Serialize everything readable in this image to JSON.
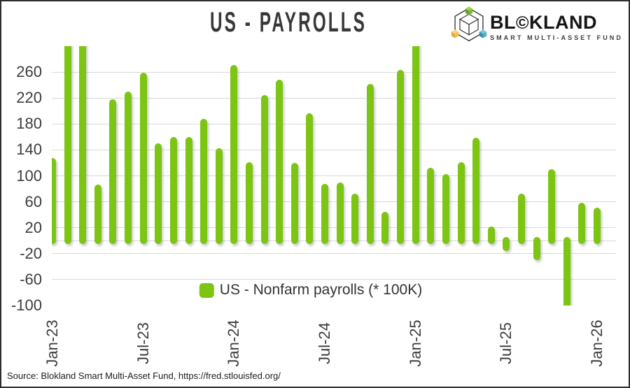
{
  "title": "US - PAYROLLS",
  "logo": {
    "text_pre": "BL",
    "o_glyph": "©",
    "text_post": "KLAND",
    "subtitle": "SMART MULTI-ASSET FUND"
  },
  "legend": {
    "label": "US - Nonfarm payrolls (* 100K)"
  },
  "source_note": "Source: Blokland Smart Multi-Asset Fund, https://fred.stlouisfed.org/",
  "chart_data": {
    "type": "bar",
    "title": "US - PAYROLLS",
    "legend": [
      "US - Nonfarm payrolls (* 100K)"
    ],
    "legend_position": "bottom-center",
    "grid": true,
    "zero_line": true,
    "ylim": [
      -100,
      300
    ],
    "y_ticks": [
      260,
      220,
      180,
      140,
      100,
      60,
      20,
      -20,
      -60,
      -100
    ],
    "x_shown_ticks": [
      "Jan-23",
      "Jul-23",
      "Jan-24",
      "Jul-24",
      "Jan-25",
      "Jul-25",
      "Jan-26"
    ],
    "categories": [
      "Jan-23",
      "Feb-23",
      "Mar-23",
      "Apr-23",
      "May-23",
      "Jun-23",
      "Jul-23",
      "Aug-23",
      "Sep-23",
      "Oct-23",
      "Nov-23",
      "Dec-23",
      "Jan-24",
      "Feb-24",
      "Mar-24",
      "Apr-24",
      "May-24",
      "Jun-24",
      "Jul-24",
      "Aug-24",
      "Sep-24",
      "Oct-24",
      "Nov-24",
      "Dec-24",
      "Jan-25",
      "Feb-25",
      "Mar-25",
      "Apr-25",
      "May-25",
      "Jun-25",
      "Jul-25",
      "Aug-25",
      "Sep-25",
      "Oct-25",
      "Nov-25",
      "Dec-25",
      "Jan-26"
    ],
    "values": [
      128,
      310,
      310,
      87,
      218,
      230,
      259,
      150,
      160,
      160,
      188,
      143,
      271,
      121,
      224,
      248,
      120,
      196,
      88,
      90,
      72,
      242,
      45,
      263,
      310,
      112,
      103,
      121,
      159,
      22,
      -16,
      72,
      -30,
      110,
      -110,
      58,
      51
    ],
    "clipped": {
      "top_overflow": [
        "Feb-23",
        "Mar-23",
        "Jan-25"
      ],
      "bottom_overflow": [
        "Nov-25"
      ]
    },
    "colors": {
      "bar": "#7dc513",
      "grid": "#d9d9d9",
      "text": "#3d3d3d"
    }
  }
}
